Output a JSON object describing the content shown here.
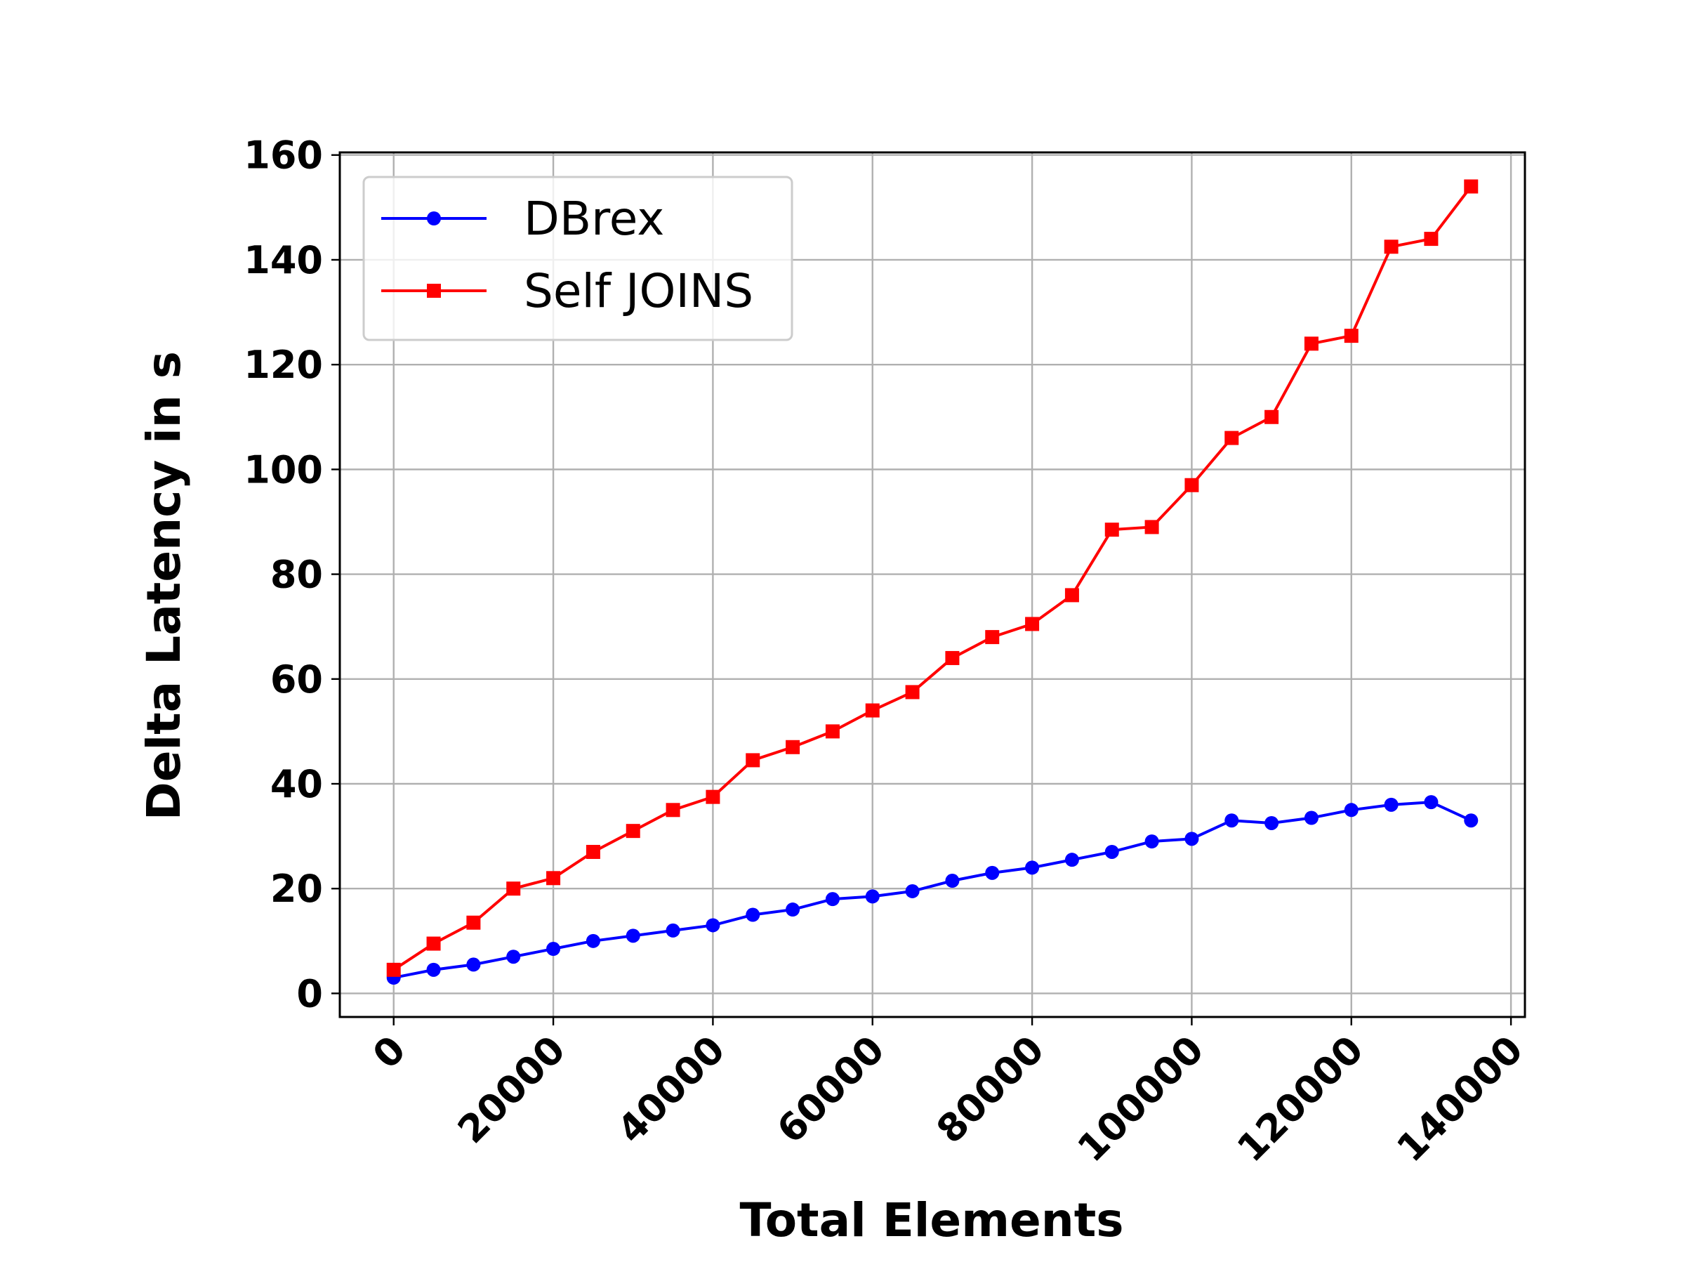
{
  "chart_data": {
    "type": "line",
    "title": "",
    "xlabel": "Total Elements",
    "ylabel": "Delta Latency in s",
    "xlim": [
      -6750,
      141750
    ],
    "ylim": [
      -4.5,
      160.5
    ],
    "x_ticks": [
      0,
      20000,
      40000,
      60000,
      80000,
      100000,
      120000,
      140000
    ],
    "x_tick_labels": [
      "0",
      "20000",
      "40000",
      "60000",
      "80000",
      "100000",
      "120000",
      "140000"
    ],
    "y_ticks": [
      0,
      20,
      40,
      60,
      80,
      100,
      120,
      140,
      160
    ],
    "y_tick_labels": [
      "0",
      "20",
      "40",
      "60",
      "80",
      "100",
      "120",
      "140",
      "160"
    ],
    "x_tick_rotation": 45,
    "grid": true,
    "legend_position": "top-left",
    "x": [
      0,
      5000,
      10000,
      15000,
      20000,
      25000,
      30000,
      35000,
      40000,
      45000,
      50000,
      55000,
      60000,
      65000,
      70000,
      75000,
      80000,
      85000,
      90000,
      95000,
      100000,
      105000,
      110000,
      115000,
      120000,
      125000,
      130000,
      135000
    ],
    "series": [
      {
        "name": "DBrex",
        "color": "#0000ff",
        "marker": "circle",
        "values": [
          3,
          4.5,
          5.5,
          7,
          8.5,
          10,
          11,
          12,
          13,
          15,
          16,
          18,
          18.5,
          19.5,
          21.5,
          23,
          24,
          25.5,
          27,
          29,
          29.5,
          33,
          32.5,
          33.5,
          35,
          36,
          36.5,
          33
        ]
      },
      {
        "name": "Self JOINS",
        "color": "#ff0000",
        "marker": "square",
        "values": [
          4.5,
          9.5,
          13.5,
          20,
          22,
          27,
          31,
          35,
          37.5,
          44.5,
          47,
          50,
          54,
          57.5,
          64,
          68,
          70.5,
          76,
          88.5,
          89,
          97,
          106,
          110,
          124,
          125.5,
          142.5,
          144,
          154
        ]
      }
    ]
  }
}
